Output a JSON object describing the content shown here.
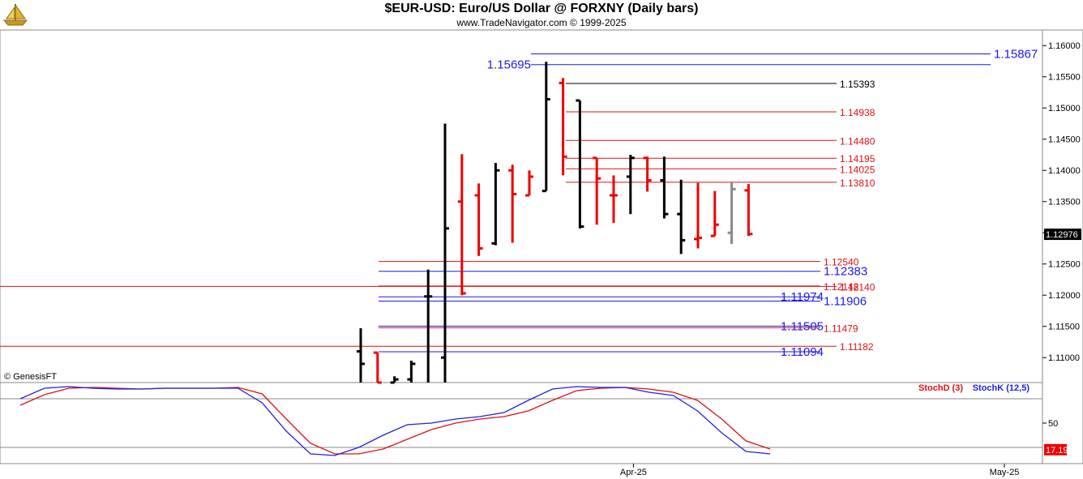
{
  "header": {
    "title": "$EUR-USD:  Euro/US Dollar @ FORXNY  (Daily bars)",
    "subtitle": "www.TradeNavigator.com © 1999-2025",
    "watermark": "© GenesisFT",
    "logo_icon": "sailboat-icon"
  },
  "colors": {
    "up_bar": "#000000",
    "down_bar": "#ee0000",
    "neutral_bar": "#888888",
    "blue_level": "#1a1aee",
    "red_level": "#dd1111",
    "black_level": "#000000",
    "stoch_d": "#dd1111",
    "stoch_k": "#2222dd"
  },
  "chart_data": [
    {
      "type": "ohlc",
      "title": "$EUR-USD:  Euro/US Dollar @ FORXNY  (Daily bars)",
      "ylim": [
        1.106,
        1.1625
      ],
      "y_ticks": [
        "1.11000",
        "1.11500",
        "1.12000",
        "1.12500",
        "1.13000",
        "1.13500",
        "1.14000",
        "1.14500",
        "1.15000",
        "1.15500",
        "1.16000"
      ],
      "x_ticks": [
        {
          "label": "Apr-25",
          "index": 18
        },
        {
          "label": "May-25",
          "index": 40
        }
      ],
      "last_price": "1.12976",
      "bars": [
        {
          "o": 1.111,
          "h": 1.1147,
          "l": 1.106,
          "c": 1.109,
          "dir": "up"
        },
        {
          "o": 1.1108,
          "h": 1.1108,
          "l": 1.106,
          "c": 1.106,
          "dir": "down"
        },
        {
          "o": 1.106,
          "h": 1.107,
          "l": 1.106,
          "c": 1.1065,
          "dir": "up"
        },
        {
          "o": 1.1065,
          "h": 1.1095,
          "l": 1.106,
          "c": 1.109,
          "dir": "up"
        },
        {
          "o": 1.1198,
          "h": 1.1241,
          "l": 1.106,
          "c": 1.1198,
          "dir": "up"
        },
        {
          "o": 1.11,
          "h": 1.1475,
          "l": 1.106,
          "c": 1.1307,
          "dir": "up"
        },
        {
          "o": 1.135,
          "h": 1.1426,
          "l": 1.12,
          "c": 1.1203,
          "dir": "down"
        },
        {
          "o": 1.136,
          "h": 1.1379,
          "l": 1.1263,
          "c": 1.1275,
          "dir": "down"
        },
        {
          "o": 1.1283,
          "h": 1.1412,
          "l": 1.128,
          "c": 1.14,
          "dir": "up"
        },
        {
          "o": 1.14,
          "h": 1.1409,
          "l": 1.1284,
          "c": 1.1362,
          "dir": "down"
        },
        {
          "o": 1.136,
          "h": 1.14,
          "l": 1.136,
          "c": 1.139,
          "dir": "down"
        },
        {
          "o": 1.1367,
          "h": 1.1574,
          "l": 1.1367,
          "c": 1.1514,
          "dir": "up"
        },
        {
          "o": 1.154,
          "h": 1.1548,
          "l": 1.1392,
          "c": 1.1422,
          "dir": "down"
        },
        {
          "o": 1.1512,
          "h": 1.1512,
          "l": 1.1307,
          "c": 1.131,
          "dir": "up"
        },
        {
          "o": 1.142,
          "h": 1.142,
          "l": 1.1313,
          "c": 1.1387,
          "dir": "down"
        },
        {
          "o": 1.136,
          "h": 1.1392,
          "l": 1.1316,
          "c": 1.136,
          "dir": "down"
        },
        {
          "o": 1.139,
          "h": 1.1425,
          "l": 1.133,
          "c": 1.142,
          "dir": "up"
        },
        {
          "o": 1.142,
          "h": 1.1422,
          "l": 1.1366,
          "c": 1.1384,
          "dir": "down"
        },
        {
          "o": 1.1384,
          "h": 1.1422,
          "l": 1.1323,
          "c": 1.133,
          "dir": "up"
        },
        {
          "o": 1.133,
          "h": 1.1385,
          "l": 1.1266,
          "c": 1.1288,
          "dir": "up"
        },
        {
          "o": 1.129,
          "h": 1.138,
          "l": 1.1275,
          "c": 1.1292,
          "dir": "down"
        },
        {
          "o": 1.1295,
          "h": 1.1367,
          "l": 1.1295,
          "c": 1.1313,
          "dir": "down"
        },
        {
          "o": 1.13,
          "h": 1.138,
          "l": 1.1282,
          "c": 1.137,
          "dir": "neutral"
        },
        {
          "o": 1.1368,
          "h": 1.1378,
          "l": 1.1295,
          "c": 1.1298,
          "dir": "down"
        }
      ],
      "levels": [
        {
          "label": "1.15867",
          "value": 1.15867,
          "color": "blue",
          "side": "right"
        },
        {
          "label": "1.15695",
          "value": 1.15695,
          "color": "blue",
          "side": "left"
        },
        {
          "label": "1.15393",
          "value": 1.15393,
          "color": "black",
          "side": "mid"
        },
        {
          "label": "1.14938",
          "value": 1.14938,
          "color": "red",
          "side": "mid"
        },
        {
          "label": "1.14480",
          "value": 1.1448,
          "color": "red",
          "side": "mid"
        },
        {
          "label": "1.14195",
          "value": 1.14195,
          "color": "red",
          "side": "mid"
        },
        {
          "label": "1.14025",
          "value": 1.14025,
          "color": "red",
          "side": "mid"
        },
        {
          "label": "1.13810",
          "value": 1.1381,
          "color": "red",
          "side": "mid"
        },
        {
          "label": "1.12540",
          "value": 1.1254,
          "color": "red",
          "side": "mid"
        },
        {
          "label": "1.12383",
          "value": 1.12383,
          "color": "blue",
          "side": "right"
        },
        {
          "label": "1.12140",
          "value": 1.1214,
          "color": "red",
          "side": "mid"
        },
        {
          "label": "1.12148",
          "value": 1.12148,
          "color": "red",
          "side": "mid"
        },
        {
          "label": "1.11974",
          "value": 1.11974,
          "color": "blue",
          "side": "left"
        },
        {
          "label": "1.11906",
          "value": 1.11906,
          "color": "blue",
          "side": "right"
        },
        {
          "label": "1.11505",
          "value": 1.11505,
          "color": "blue",
          "side": "left"
        },
        {
          "label": "1.11479",
          "value": 1.11479,
          "color": "red",
          "side": "mid"
        },
        {
          "label": "1.11182",
          "value": 1.11182,
          "color": "red",
          "side": "mid"
        },
        {
          "label": "1.11094",
          "value": 1.11094,
          "color": "blue",
          "side": "left"
        }
      ]
    },
    {
      "type": "line",
      "legend": [
        "StochD (3)",
        "StochK (12,5)"
      ],
      "ylim": [
        0,
        100
      ],
      "y_ticks": [
        "50"
      ],
      "reference_lines": [
        80,
        20
      ],
      "last_value": "17.19",
      "series": [
        {
          "name": "StochD (3)",
          "values": [
            72,
            85,
            93,
            94,
            93,
            92,
            93,
            93,
            93,
            94,
            86,
            55,
            25,
            12,
            12,
            18,
            30,
            42,
            50,
            55,
            58,
            65,
            78,
            90,
            93,
            94,
            92,
            88,
            78,
            55,
            28,
            18
          ]
        },
        {
          "name": "StochK (12,5)",
          "values": [
            80,
            93,
            95,
            93,
            92,
            92,
            93,
            93,
            93,
            93,
            75,
            40,
            12,
            10,
            20,
            35,
            48,
            50,
            55,
            58,
            63,
            78,
            92,
            95,
            94,
            94,
            88,
            84,
            65,
            38,
            15,
            12
          ]
        }
      ]
    }
  ]
}
